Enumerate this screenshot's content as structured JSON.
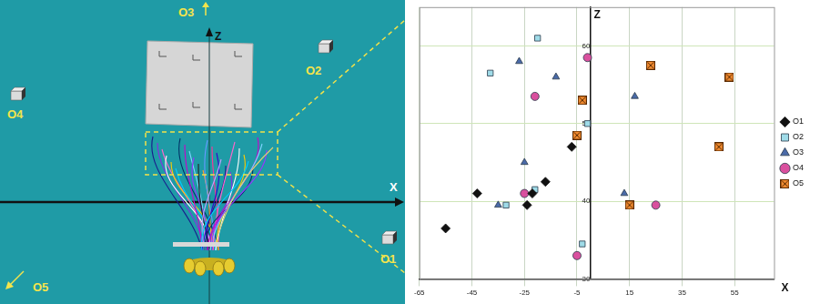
{
  "scene": {
    "axis_labels": {
      "x": "X",
      "z": "Z"
    },
    "obstacles": [
      {
        "label": "O1",
        "arrow": false
      },
      {
        "label": "O2",
        "arrow": false
      },
      {
        "label": "O3",
        "arrow": true
      },
      {
        "label": "O4",
        "arrow": false
      },
      {
        "label": "O5",
        "arrow": true
      }
    ]
  },
  "chart_data": {
    "type": "scatter",
    "x_label": "X",
    "y_label": "Z",
    "xlim": [
      -65,
      70
    ],
    "ylim": [
      30,
      65
    ],
    "xticks": [
      -65,
      -45,
      -25,
      -5,
      15,
      35,
      55
    ],
    "yticks": [
      30,
      40,
      50,
      60
    ],
    "grid": true,
    "legend": "right",
    "series": [
      {
        "name": "O1",
        "color": "#111111",
        "marker": "diamond",
        "values": [
          [
            -55,
            36.5
          ],
          [
            -43,
            41
          ],
          [
            -22,
            41
          ],
          [
            -24,
            39.5
          ],
          [
            -17,
            42.5
          ],
          [
            -7,
            47
          ]
        ]
      },
      {
        "name": "O2",
        "color": "#9fdbe8",
        "marker": "square",
        "values": [
          [
            -20,
            61
          ],
          [
            -38,
            56.5
          ],
          [
            -21,
            41.5
          ],
          [
            -32,
            39.5
          ],
          [
            -1,
            50
          ],
          [
            -3,
            34.5
          ]
        ]
      },
      {
        "name": "O3",
        "color": "#4a6aa8",
        "marker": "triangle",
        "values": [
          [
            -27,
            58
          ],
          [
            -13,
            56
          ],
          [
            -25,
            45
          ],
          [
            -35,
            39.5
          ],
          [
            17,
            53.5
          ],
          [
            13,
            41
          ]
        ]
      },
      {
        "name": "O4",
        "color": "#d9509e",
        "marker": "circle",
        "values": [
          [
            -1,
            58.5
          ],
          [
            -21,
            53.5
          ],
          [
            -25,
            41
          ],
          [
            -5,
            33
          ],
          [
            25,
            39.5
          ]
        ]
      },
      {
        "name": "O5",
        "color": "#f08a30",
        "marker": "square_x",
        "values": [
          [
            -3,
            53
          ],
          [
            -5,
            48.5
          ],
          [
            23,
            57.5
          ],
          [
            53,
            56
          ],
          [
            49,
            47
          ],
          [
            15,
            39.5
          ]
        ]
      }
    ]
  }
}
